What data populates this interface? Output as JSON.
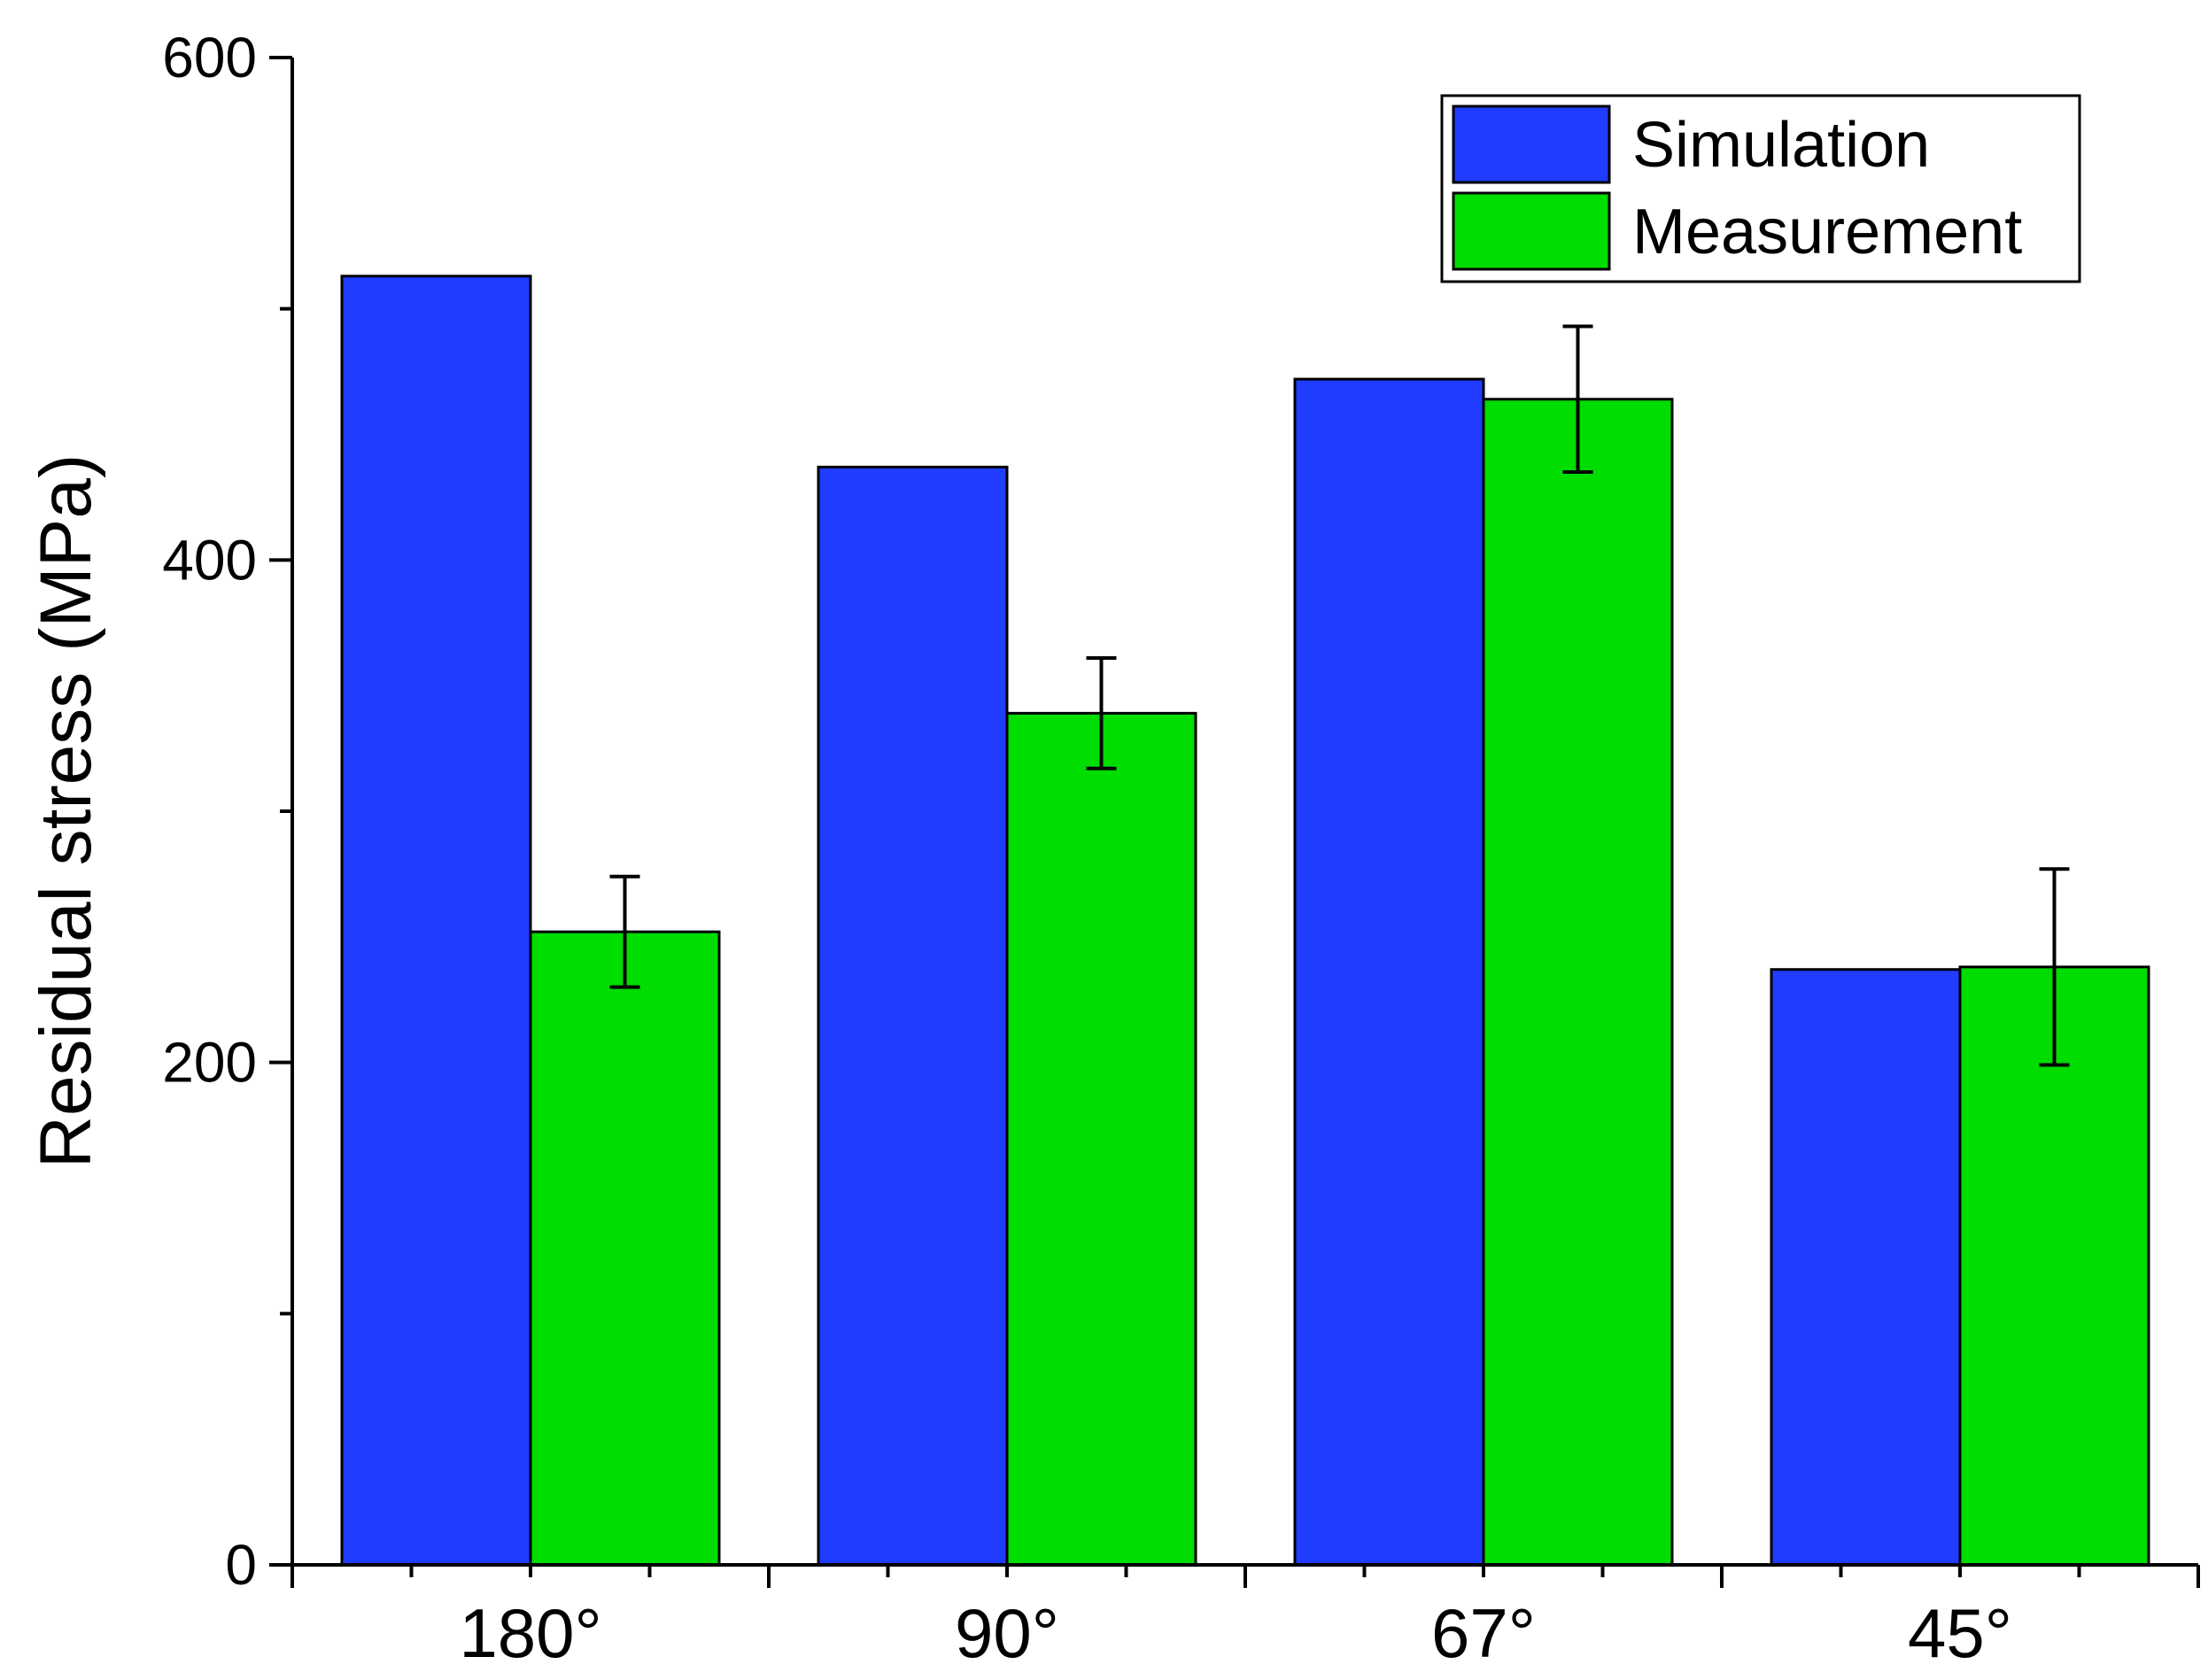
{
  "chart_data": {
    "type": "bar",
    "title": "",
    "xlabel": "",
    "ylabel": "Residual stress (MPa)",
    "ylim": [
      0,
      600
    ],
    "y_major_ticks": [
      0,
      200,
      400,
      600
    ],
    "y_minor_ticks": [
      100,
      300,
      500
    ],
    "categories": [
      "180°",
      "90°",
      "67°",
      "45°"
    ],
    "series": [
      {
        "name": "Simulation",
        "color": "#1f3cff",
        "values": [
          513,
          437,
          472,
          237
        ],
        "errors": null
      },
      {
        "name": "Measurement",
        "color": "#00dd00",
        "values": [
          252,
          339,
          464,
          238
        ],
        "errors": [
          22,
          22,
          29,
          39
        ]
      }
    ],
    "legend": {
      "position": "top-right",
      "entries": [
        "Simulation",
        "Measurement"
      ]
    },
    "grid": false
  }
}
